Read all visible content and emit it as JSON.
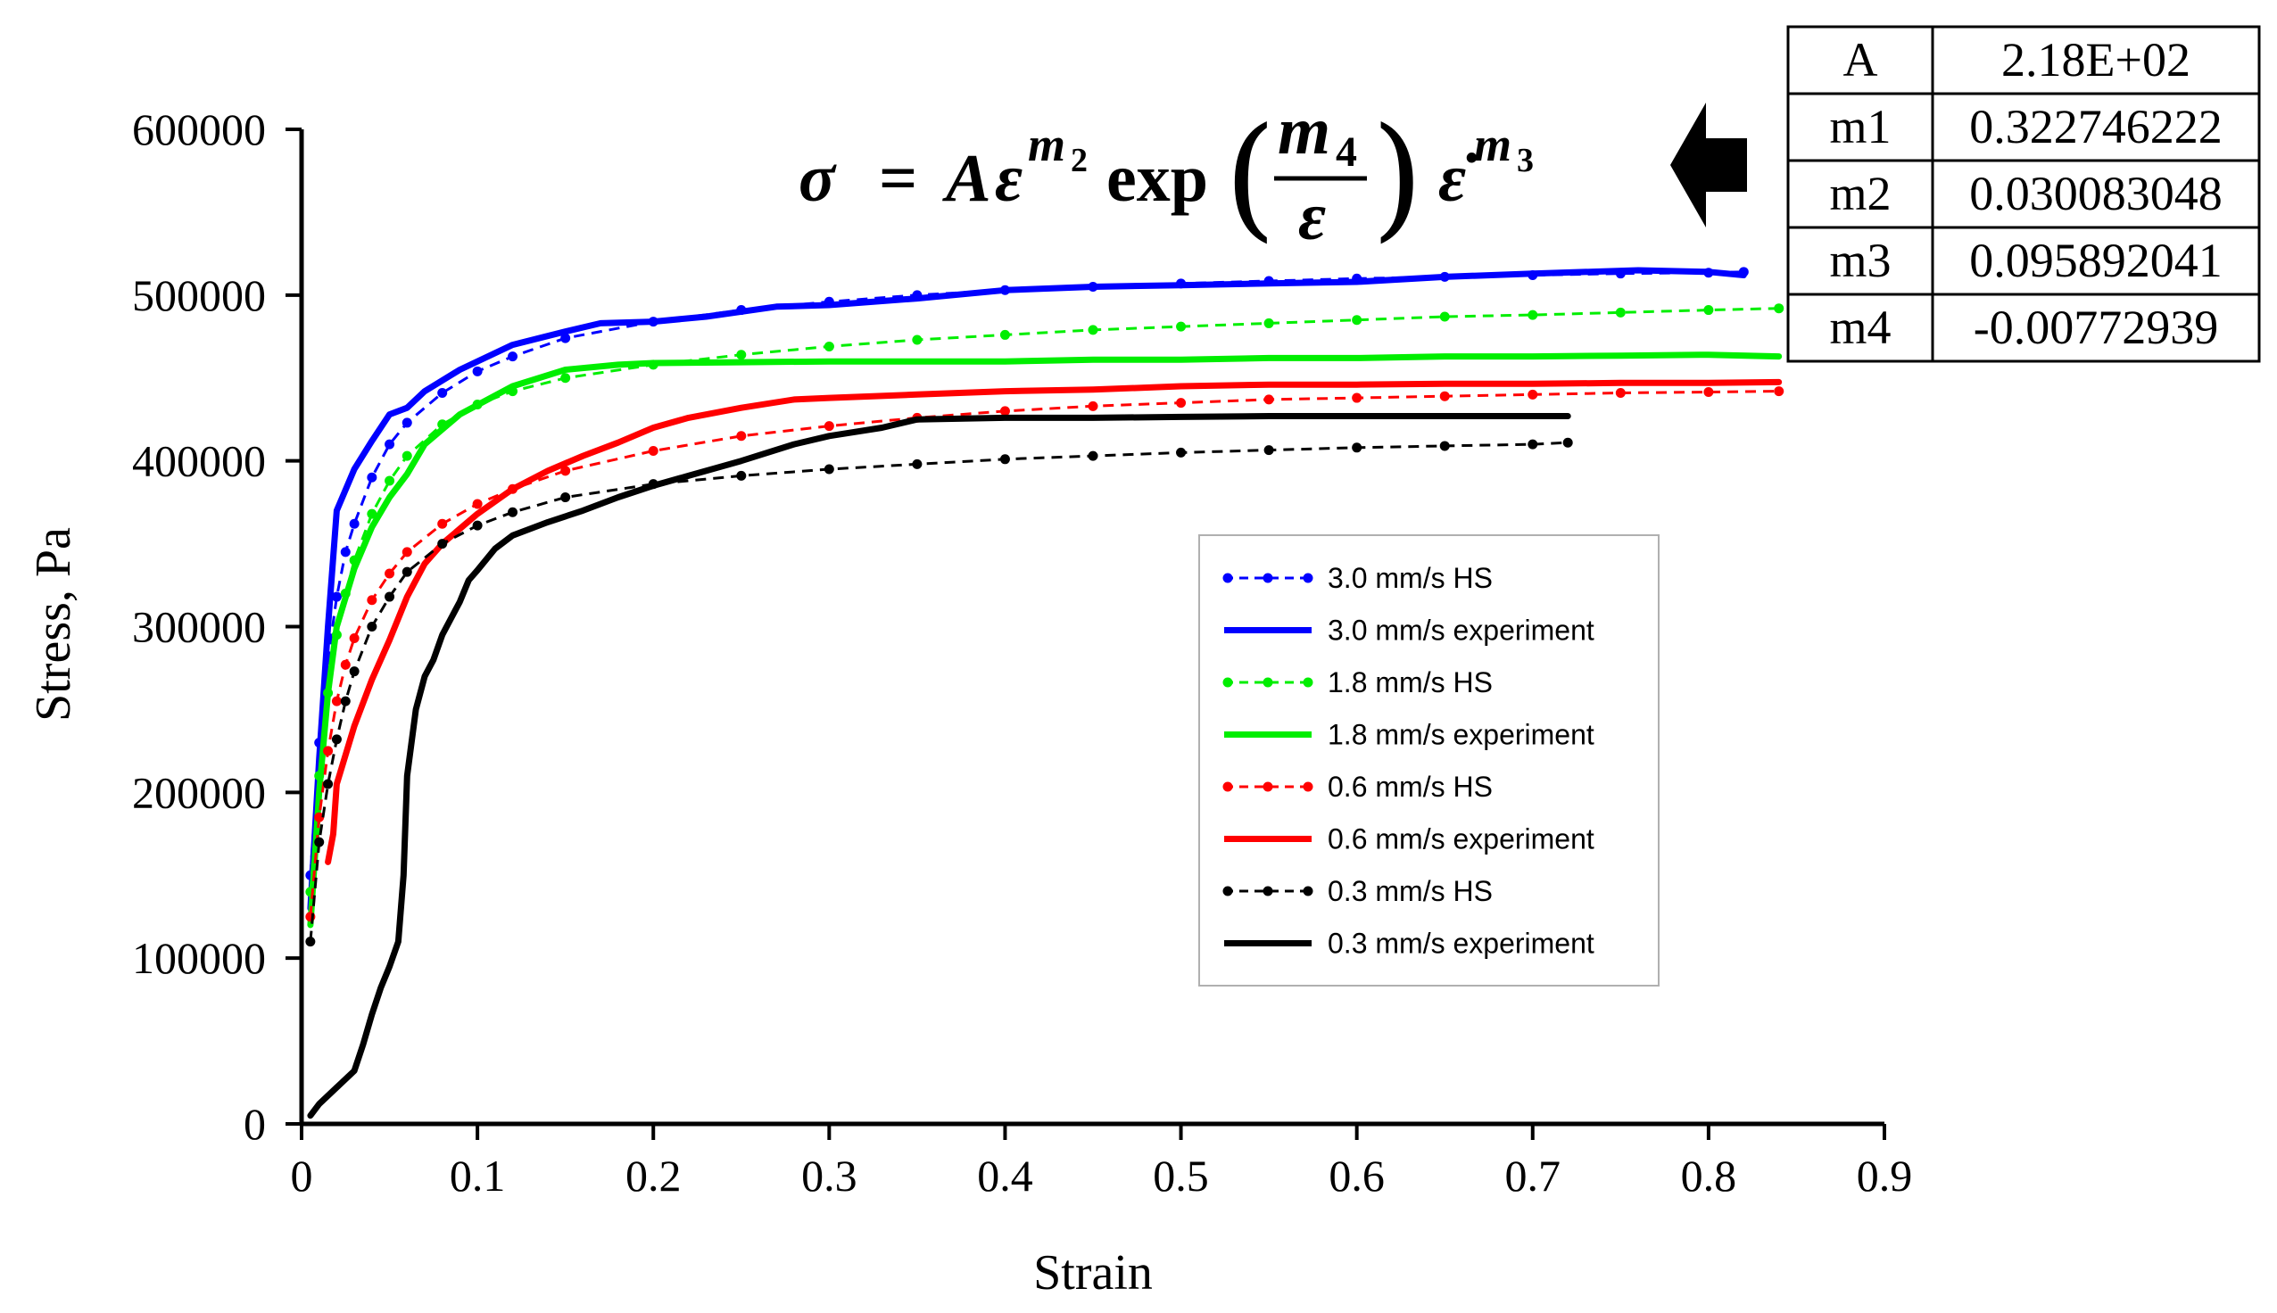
{
  "chart_data": {
    "type": "line",
    "title": "",
    "xlabel": "Strain",
    "ylabel": "Stress, Pa",
    "xlim": [
      0,
      0.9
    ],
    "ylim": [
      0,
      600000
    ],
    "x_ticks": [
      "0",
      "0.1",
      "0.2",
      "0.3",
      "0.4",
      "0.5",
      "0.6",
      "0.7",
      "0.8",
      "0.9"
    ],
    "y_ticks": [
      "0",
      "100000",
      "200000",
      "300000",
      "400000",
      "500000",
      "600000"
    ],
    "grid": false,
    "legend_position": "center-right",
    "series": [
      {
        "name": "3.0 mm/s HS",
        "color": "#0000ff",
        "style": "dashed-markers",
        "x": [
          0.005,
          0.01,
          0.015,
          0.02,
          0.025,
          0.03,
          0.04,
          0.05,
          0.06,
          0.08,
          0.1,
          0.12,
          0.15,
          0.2,
          0.25,
          0.3,
          0.35,
          0.4,
          0.45,
          0.5,
          0.55,
          0.6,
          0.65,
          0.7,
          0.75,
          0.8,
          0.82
        ],
        "y": [
          150000,
          230000,
          280000,
          318000,
          345000,
          362000,
          390000,
          410000,
          423000,
          441000,
          454000,
          463000,
          474000,
          484000,
          491000,
          496000,
          500000,
          503000,
          505000,
          507000,
          508500,
          510000,
          511000,
          512000,
          513000,
          513500,
          514000
        ]
      },
      {
        "name": "3.0 mm/s experiment",
        "color": "#0000ff",
        "style": "solid",
        "x": [
          0.005,
          0.01,
          0.015,
          0.02,
          0.03,
          0.04,
          0.05,
          0.06,
          0.07,
          0.09,
          0.12,
          0.15,
          0.17,
          0.2,
          0.23,
          0.27,
          0.3,
          0.35,
          0.4,
          0.45,
          0.5,
          0.55,
          0.6,
          0.65,
          0.7,
          0.76,
          0.8,
          0.82
        ],
        "y": [
          130000,
          220000,
          300000,
          370000,
          395000,
          412000,
          428000,
          432000,
          442000,
          455000,
          470000,
          478000,
          483000,
          484000,
          487000,
          493000,
          494000,
          498000,
          503000,
          505000,
          506000,
          507000,
          508000,
          511000,
          513000,
          515000,
          514000,
          512000
        ]
      },
      {
        "name": "1.8 mm/s HS",
        "color": "#00ee00",
        "style": "dashed-markers",
        "x": [
          0.005,
          0.01,
          0.015,
          0.02,
          0.025,
          0.03,
          0.04,
          0.05,
          0.06,
          0.08,
          0.1,
          0.12,
          0.15,
          0.2,
          0.25,
          0.3,
          0.35,
          0.4,
          0.45,
          0.5,
          0.55,
          0.6,
          0.65,
          0.7,
          0.75,
          0.8,
          0.84
        ],
        "y": [
          140000,
          210000,
          260000,
          295000,
          320000,
          340000,
          368000,
          388000,
          403000,
          422000,
          434000,
          442000,
          450000,
          458000,
          464000,
          469000,
          473000,
          476000,
          479000,
          481000,
          483000,
          485000,
          487000,
          488000,
          489500,
          491000,
          492000
        ]
      },
      {
        "name": "1.8 mm/s experiment",
        "color": "#00ee00",
        "style": "solid",
        "x": [
          0.005,
          0.01,
          0.015,
          0.02,
          0.03,
          0.04,
          0.05,
          0.06,
          0.07,
          0.09,
          0.12,
          0.15,
          0.18,
          0.2,
          0.25,
          0.3,
          0.35,
          0.4,
          0.45,
          0.5,
          0.55,
          0.6,
          0.65,
          0.7,
          0.75,
          0.8,
          0.84
        ],
        "y": [
          120000,
          200000,
          260000,
          300000,
          335000,
          360000,
          378000,
          392000,
          410000,
          428000,
          445000,
          455000,
          458000,
          459000,
          459500,
          460000,
          460000,
          460000,
          461000,
          461000,
          462000,
          462000,
          463000,
          463000,
          463500,
          464000,
          463000
        ]
      },
      {
        "name": "0.6 mm/s HS",
        "color": "#ff0000",
        "style": "dashed-markers",
        "x": [
          0.005,
          0.01,
          0.015,
          0.02,
          0.025,
          0.03,
          0.04,
          0.05,
          0.06,
          0.08,
          0.1,
          0.12,
          0.15,
          0.2,
          0.25,
          0.3,
          0.35,
          0.4,
          0.45,
          0.5,
          0.55,
          0.6,
          0.65,
          0.7,
          0.75,
          0.8,
          0.84
        ],
        "y": [
          125000,
          185000,
          225000,
          255000,
          277000,
          293000,
          316000,
          332000,
          345000,
          362000,
          374000,
          383000,
          394000,
          406000,
          415000,
          421000,
          426000,
          430000,
          433000,
          435000,
          437000,
          438000,
          439000,
          440000,
          441000,
          441500,
          442000
        ]
      },
      {
        "name": "0.6 mm/s experiment",
        "color": "#ff0000",
        "style": "solid",
        "x": [
          0.015,
          0.018,
          0.02,
          0.03,
          0.04,
          0.05,
          0.06,
          0.07,
          0.08,
          0.1,
          0.12,
          0.14,
          0.16,
          0.18,
          0.2,
          0.22,
          0.25,
          0.28,
          0.3,
          0.35,
          0.4,
          0.45,
          0.5,
          0.55,
          0.6,
          0.65,
          0.7,
          0.75,
          0.8,
          0.84
        ],
        "y": [
          158000,
          175000,
          205000,
          240000,
          268000,
          292000,
          318000,
          338000,
          350000,
          368000,
          383000,
          394000,
          403000,
          411000,
          420000,
          426000,
          432000,
          437000,
          438000,
          440000,
          442000,
          443000,
          445000,
          446000,
          446000,
          446500,
          446500,
          447000,
          447000,
          447500
        ]
      },
      {
        "name": "0.3 mm/s HS",
        "color": "#000000",
        "style": "dashed-markers",
        "x": [
          0.005,
          0.01,
          0.015,
          0.02,
          0.025,
          0.03,
          0.04,
          0.05,
          0.06,
          0.08,
          0.1,
          0.12,
          0.15,
          0.2,
          0.25,
          0.3,
          0.35,
          0.4,
          0.45,
          0.5,
          0.55,
          0.6,
          0.65,
          0.7,
          0.72
        ],
        "y": [
          110000,
          170000,
          205000,
          232000,
          255000,
          273000,
          300000,
          318000,
          333000,
          350000,
          361000,
          369000,
          378000,
          386000,
          391000,
          395000,
          398000,
          401000,
          403000,
          405000,
          406500,
          408000,
          409000,
          410000,
          411000
        ]
      },
      {
        "name": "0.3 mm/s experiment",
        "color": "#000000",
        "style": "solid",
        "x": [
          0.005,
          0.01,
          0.02,
          0.03,
          0.035,
          0.04,
          0.045,
          0.05,
          0.055,
          0.058,
          0.06,
          0.065,
          0.07,
          0.075,
          0.08,
          0.085,
          0.09,
          0.095,
          0.1,
          0.11,
          0.12,
          0.14,
          0.16,
          0.18,
          0.2,
          0.22,
          0.25,
          0.28,
          0.3,
          0.33,
          0.35,
          0.4,
          0.45,
          0.5,
          0.55,
          0.6,
          0.65,
          0.7,
          0.72
        ],
        "y": [
          5000,
          12000,
          22000,
          32000,
          48000,
          66000,
          82000,
          95000,
          110000,
          150000,
          210000,
          250000,
          270000,
          280000,
          295000,
          305000,
          315000,
          328000,
          334000,
          347000,
          355000,
          363000,
          370000,
          378000,
          385000,
          391000,
          400000,
          410000,
          415000,
          420000,
          425000,
          426000,
          426000,
          426500,
          427000,
          427000,
          427000,
          427000,
          427000
        ]
      }
    ]
  },
  "equation": {
    "sigma": "σ",
    "equals": "=",
    "A": "A",
    "eps": "ε",
    "m2": "m",
    "m2_sub": "2",
    "exp": "exp",
    "m4": "m",
    "m4_sub": "4",
    "denom_eps": "ε",
    "epsdot": "ε̇",
    "m3": "m",
    "m3_sub": "3",
    "paren_open": "(",
    "paren_close": ")"
  },
  "parameter_table": {
    "rows": [
      {
        "name": "A",
        "value": "2.18E+02"
      },
      {
        "name": "m1",
        "value": "0.322746222"
      },
      {
        "name": "m2",
        "value": "0.030083048"
      },
      {
        "name": "m3",
        "value": "0.095892041"
      },
      {
        "name": "m4",
        "value": "-0.00772939"
      }
    ]
  },
  "colors": {
    "blue": "#0000ff",
    "green": "#00ee00",
    "red": "#ff0000",
    "black": "#000000"
  }
}
